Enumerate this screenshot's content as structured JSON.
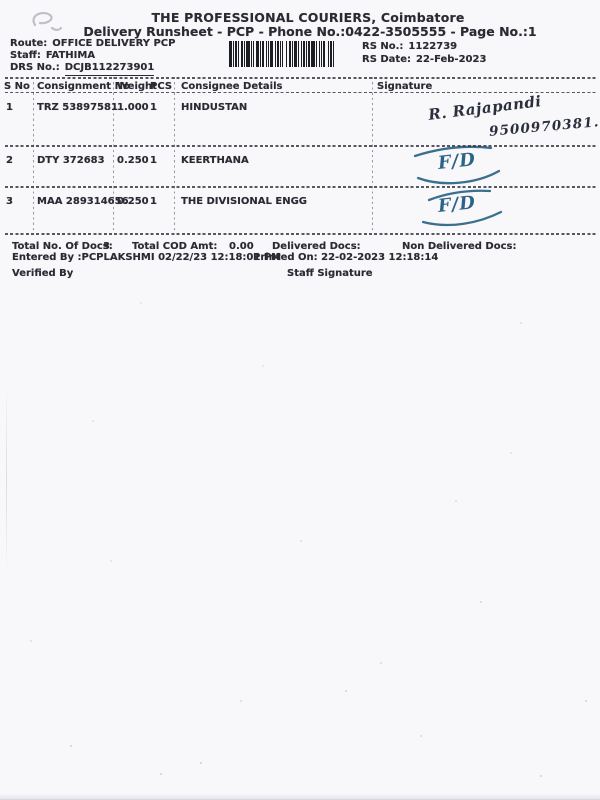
{
  "header": {
    "title_line1": "THE PROFESSIONAL COURIERS, Coimbatore",
    "title_line2": "Delivery Runsheet - PCP - Phone No.:0422-3505555 - Page No.:1"
  },
  "meta": {
    "route_label": "Route:",
    "route": "OFFICE DELIVERY PCP",
    "staff_label": "Staff:",
    "staff": "FATHIMA",
    "drs_label": "DRS No.:",
    "drs_no": "DCJB112273901",
    "rs_no_label": "RS No.:",
    "rs_no": "1122739",
    "rs_date_label": "RS Date:",
    "rs_date": "22-Feb-2023",
    "barcode_icon": "barcode"
  },
  "table": {
    "headers": {
      "s_no": "S No",
      "consignment_no": "Consignment No",
      "weight": "Weight",
      "pcs": "PCS",
      "consignee": "Consignee Details",
      "signature": "Signature"
    },
    "rows": [
      {
        "s_no": "1",
        "consignment_no": "TRZ 53897581",
        "weight": "1.000",
        "pcs": "1",
        "consignee": "HINDUSTAN",
        "signature": "R. Rajapandi",
        "signature_note": "9500970381."
      },
      {
        "s_no": "2",
        "consignment_no": "DTY 372683",
        "weight": "0.250",
        "pcs": "1",
        "consignee": "KEERTHANA",
        "signature": "F/D",
        "signature_note": ""
      },
      {
        "s_no": "3",
        "consignment_no": "MAA 289314656",
        "weight": "0.250",
        "pcs": "1",
        "consignee": "THE DIVISIONAL ENGG",
        "signature": "F/D",
        "signature_note": ""
      }
    ]
  },
  "footer": {
    "total_docs_label": "Total No. Of Docs:",
    "total_docs": "3",
    "total_cod_label": "Total COD Amt:",
    "total_cod": "0.00",
    "delivered_label": "Delivered Docs:",
    "non_delivered_label": "Non Delivered Docs:",
    "entered_by": "Entered By :PCPLAKSHMI 02/22/23 12:18:01 PM",
    "printed_on": "Printed On: 22-02-2023 12:18:14",
    "verified_by_label": "Verified By",
    "staff_signature_label": "Staff Signature"
  },
  "colors": {
    "paper": "#f8f7fa",
    "ink": "#2a2a32",
    "pen_blue": "#2c6487",
    "pen_dark": "#2b2f3d",
    "pen_light_scribble": "#b4b8bf"
  }
}
